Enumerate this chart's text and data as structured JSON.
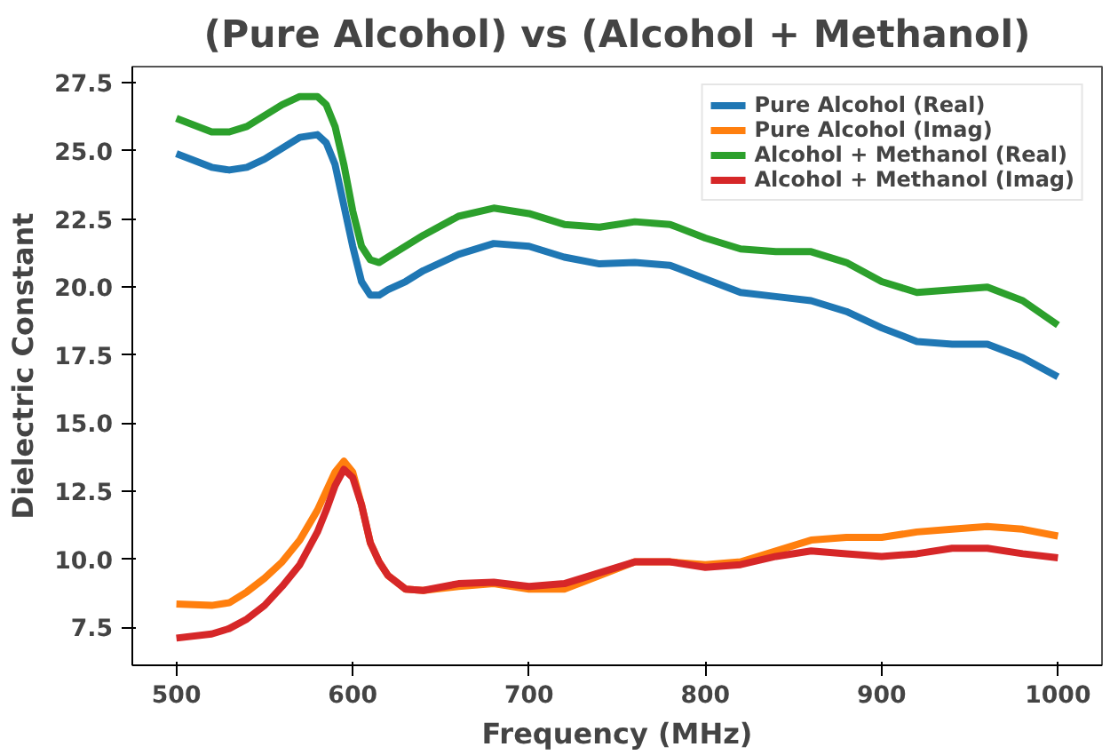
{
  "chart_data": {
    "type": "line",
    "title": "(Pure Alcohol) vs (Alcohol + Methanol)",
    "xlabel": "Frequency (MHz)",
    "ylabel": "Dielectric Constant",
    "x": [
      500,
      520,
      530,
      540,
      550,
      560,
      570,
      580,
      585,
      590,
      595,
      600,
      605,
      610,
      615,
      620,
      630,
      640,
      660,
      680,
      700,
      720,
      740,
      760,
      780,
      800,
      820,
      840,
      860,
      880,
      900,
      920,
      940,
      960,
      980,
      1000
    ],
    "series": [
      {
        "name": "Pure Alcohol (Real)",
        "color": "#1f77b4",
        "values": [
          24.9,
          24.4,
          24.3,
          24.4,
          24.7,
          25.1,
          25.5,
          25.6,
          25.3,
          24.5,
          23.0,
          21.5,
          20.2,
          19.7,
          19.7,
          19.9,
          20.2,
          20.6,
          21.2,
          21.6,
          21.5,
          21.1,
          20.85,
          20.9,
          20.8,
          20.3,
          19.8,
          19.65,
          19.5,
          19.1,
          18.5,
          18.0,
          17.9,
          17.9,
          17.4,
          16.7
        ]
      },
      {
        "name": "Pure Alcohol (Imag)",
        "color": "#ff7f0e",
        "values": [
          8.35,
          8.3,
          8.4,
          8.8,
          9.3,
          9.9,
          10.7,
          11.8,
          12.5,
          13.2,
          13.6,
          13.2,
          12.0,
          10.6,
          9.9,
          9.4,
          8.9,
          8.85,
          9.0,
          9.1,
          8.9,
          8.9,
          9.4,
          9.9,
          9.9,
          9.8,
          9.9,
          10.3,
          10.7,
          10.8,
          10.8,
          11.0,
          11.1,
          11.2,
          11.1,
          10.85
        ]
      },
      {
        "name": "Alcohol + Methanol (Real)",
        "color": "#2ca02c",
        "values": [
          26.2,
          25.7,
          25.7,
          25.9,
          26.3,
          26.7,
          27.0,
          27.0,
          26.7,
          25.9,
          24.5,
          22.8,
          21.5,
          21.0,
          20.9,
          21.1,
          21.5,
          21.9,
          22.6,
          22.9,
          22.7,
          22.3,
          22.2,
          22.4,
          22.3,
          21.8,
          21.4,
          21.3,
          21.3,
          20.9,
          20.2,
          19.8,
          19.9,
          20.0,
          19.5,
          18.6
        ]
      },
      {
        "name": "Alcohol + Methanol (Imag)",
        "color": "#d62728",
        "values": [
          7.1,
          7.25,
          7.45,
          7.8,
          8.3,
          9.0,
          9.8,
          11.0,
          11.8,
          12.7,
          13.3,
          13.0,
          12.0,
          10.6,
          9.9,
          9.4,
          8.9,
          8.85,
          9.1,
          9.15,
          9.0,
          9.1,
          9.5,
          9.9,
          9.9,
          9.7,
          9.8,
          10.1,
          10.3,
          10.2,
          10.1,
          10.2,
          10.4,
          10.4,
          10.2,
          10.05
        ]
      }
    ],
    "xlim": [
      475,
      1025
    ],
    "ylim": [
      6.1,
      28.1
    ],
    "xticks": [
      500,
      600,
      700,
      800,
      900,
      1000
    ],
    "yticks": [
      7.5,
      {
        "value": 10,
        "label": "10.0"
      },
      12.5,
      {
        "value": 15,
        "label": "15.0"
      },
      17.5,
      {
        "value": 20,
        "label": "20.0"
      },
      22.5,
      {
        "value": 25,
        "label": "25.0"
      },
      27.5
    ],
    "grid": false,
    "legend": "top right",
    "marker": "none",
    "line_style": "solid"
  }
}
